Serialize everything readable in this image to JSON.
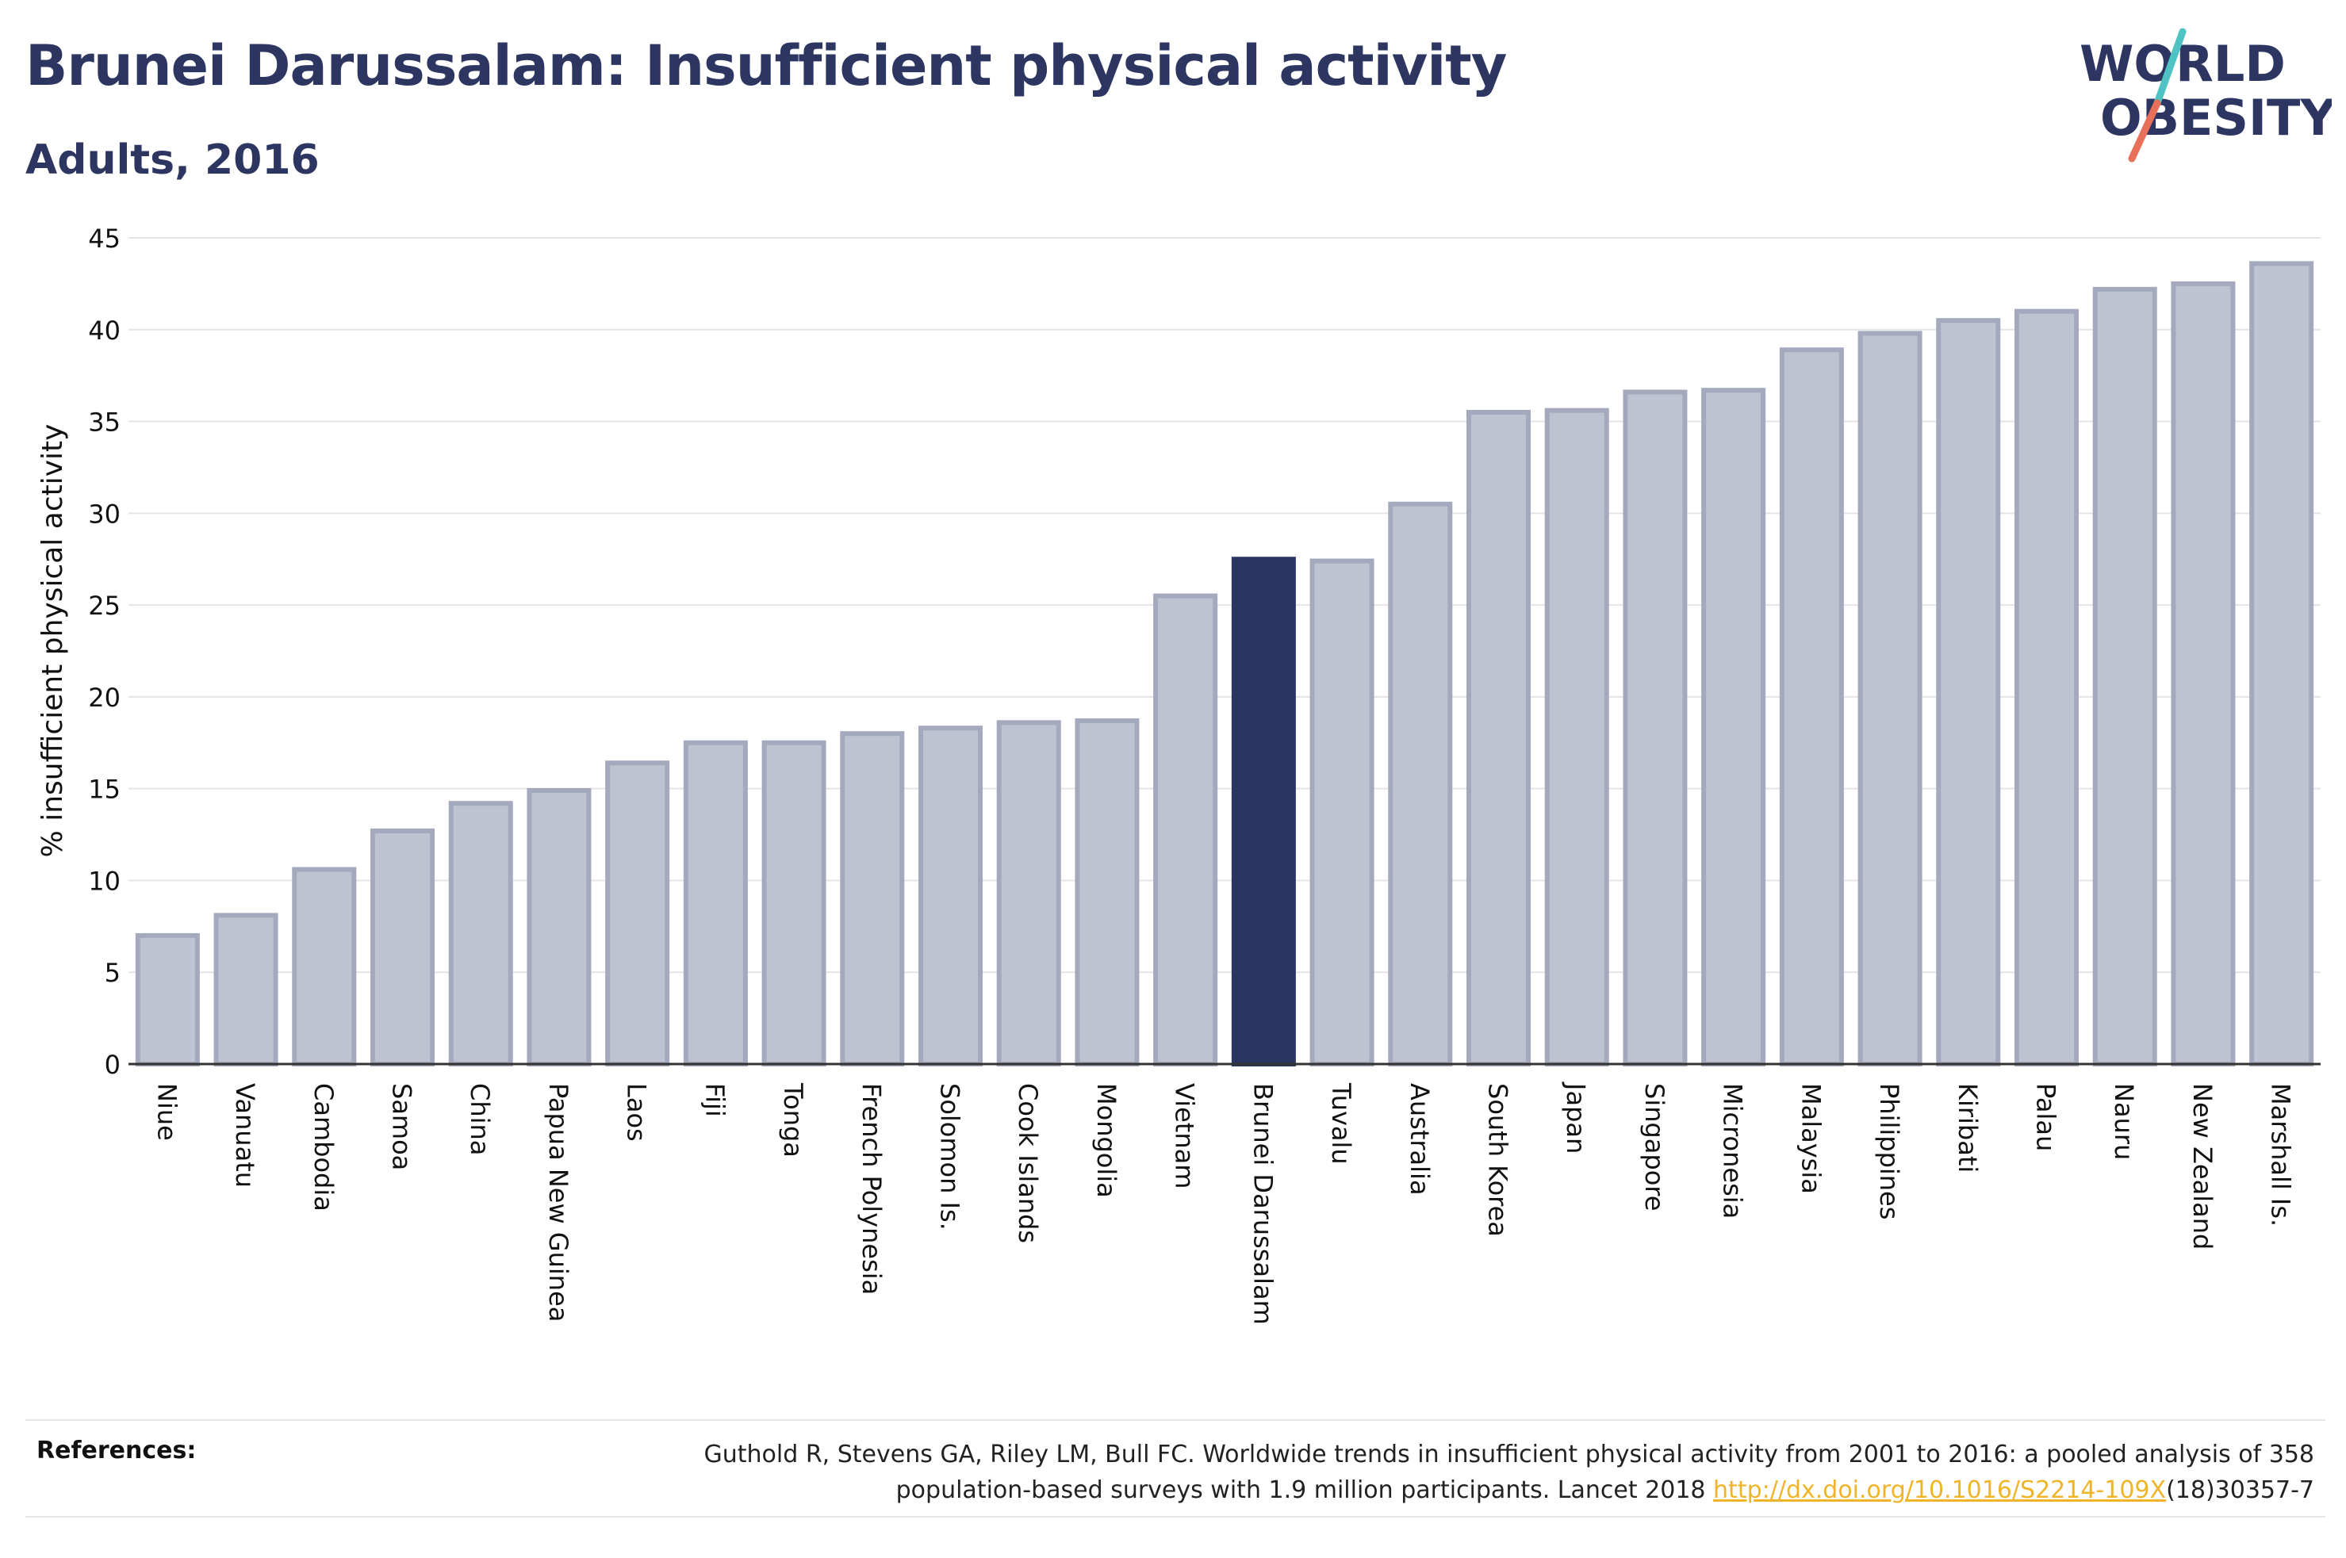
{
  "header": {
    "title": "Brunei Darussalam: Insufficient physical activity",
    "subtitle": "Adults, 2016"
  },
  "logo": {
    "line1": "WORLD",
    "line2": "OBESITY",
    "slash_colors": [
      "#4fc3c3",
      "#e8705a"
    ]
  },
  "colors": {
    "bar": "#bfc3d1",
    "bar_border": "#a4a9bd",
    "highlight": "#2b3561",
    "text": "#2d3561",
    "link": "#f0b429"
  },
  "chart_data": {
    "type": "bar",
    "ylabel": "% insufficient physical activity",
    "xlabel": "",
    "ylim": [
      0,
      45
    ],
    "yticks": [
      0,
      5,
      10,
      15,
      20,
      25,
      30,
      35,
      40,
      45
    ],
    "grid": true,
    "highlight": "Brunei Darussalam",
    "categories": [
      "Niue",
      "Vanuatu",
      "Cambodia",
      "Samoa",
      "China",
      "Papua New Guinea",
      "Laos",
      "Fiji",
      "Tonga",
      "French Polynesia",
      "Solomon Is.",
      "Cook Islands",
      "Mongolia",
      "Vietnam",
      "Brunei Darussalam",
      "Tuvalu",
      "Australia",
      "South Korea",
      "Japan",
      "Singapore",
      "Micronesia",
      "Malaysia",
      "Philippines",
      "Kiribati",
      "Palau",
      "Nauru",
      "New Zealand",
      "Marshall Is."
    ],
    "values": [
      7.0,
      8.1,
      10.6,
      12.7,
      14.2,
      14.9,
      16.4,
      17.5,
      17.5,
      18.0,
      18.3,
      18.6,
      18.7,
      25.5,
      27.5,
      27.4,
      30.5,
      35.5,
      35.6,
      36.6,
      36.7,
      38.9,
      39.8,
      40.5,
      41.0,
      42.2,
      42.5,
      43.6
    ]
  },
  "references": {
    "label": "References:",
    "text_line1": "Guthold R, Stevens GA, Riley LM, Bull FC. Worldwide trends in insufficient physical activity from 2001 to 2016: a pooled analysis of 358",
    "text_line2_pre": "population-based surveys with 1.9 million participants. Lancet 2018 ",
    "link": "http://dx.doi.org/10.1016/S2214-109X",
    "text_line2_post": "(18)30357-7"
  }
}
